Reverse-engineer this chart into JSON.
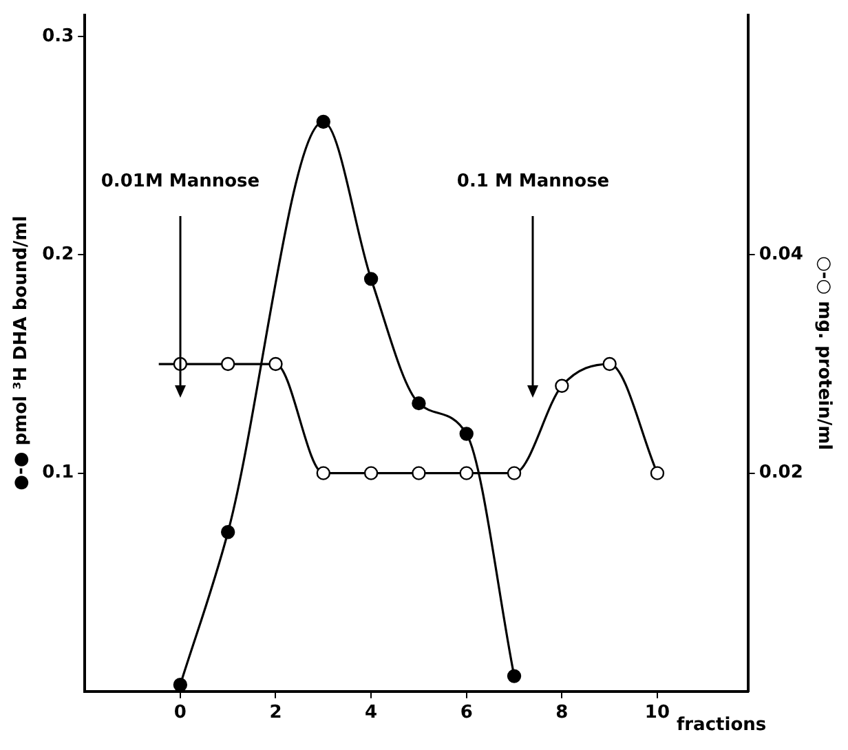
{
  "chart_data": {
    "type": "line",
    "xlabel": "fractions",
    "ylabel": "●-● pmol ³H DHA bound/ml",
    "y2label": "○-○ mg. protein/ml",
    "xlim": [
      -2,
      11.9
    ],
    "xticks": [
      0,
      2,
      4,
      6,
      8,
      10
    ],
    "ylim": [
      0,
      0.31
    ],
    "yticks": [
      0.1,
      0.2,
      0.3
    ],
    "y2lim": [
      0,
      0.062
    ],
    "y2ticks": [
      0.02,
      0.04
    ],
    "series": [
      {
        "color": "#000000",
        "marker": "circle",
        "x": [
          0,
          1,
          3,
          4,
          5,
          6,
          7
        ],
        "values": [
          0.003,
          0.073,
          0.261,
          0.189,
          0.132,
          0.118,
          0.007
        ]
      },
      {
        "color": "#000000",
        "marker": "circle_open",
        "axis": "y2",
        "x": [
          -0.45,
          0,
          1,
          2,
          3,
          4,
          5,
          6,
          7,
          8,
          9,
          10
        ],
        "values": [
          0.03,
          0.03,
          0.03,
          0.03,
          0.02,
          0.02,
          0.02,
          0.02,
          0.02,
          0.028,
          0.03,
          0.02
        ]
      }
    ],
    "annotations": [
      "0.01M Mannose",
      "0.1 M Mannose"
    ]
  }
}
